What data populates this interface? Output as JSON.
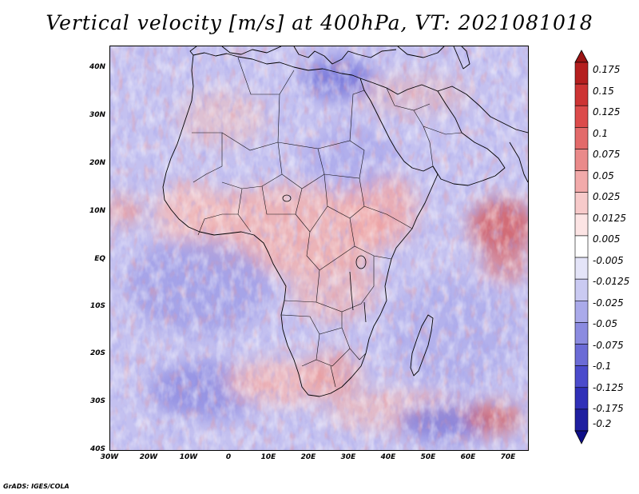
{
  "title": "Vertical velocity [m/s] at 400hPa, VT: 2021081018",
  "credit": "GrADS: IGES/COLA",
  "map": {
    "lat_labels": [
      "40N",
      "30N",
      "20N",
      "10N",
      "EQ",
      "10S",
      "20S",
      "30S",
      "40S"
    ],
    "lon_labels": [
      "30W",
      "20W",
      "10W",
      "0",
      "10E",
      "20E",
      "30E",
      "40E",
      "50E",
      "60E",
      "70E"
    ],
    "lat_range": [
      -40,
      44
    ],
    "lon_range": [
      -30,
      75
    ]
  },
  "colorbar": {
    "labels": [
      "0.175",
      "0.15",
      "0.125",
      "0.1",
      "0.075",
      "0.05",
      "0.025",
      "0.0125",
      "0.005",
      "-0.005",
      "-0.0125",
      "-0.025",
      "-0.05",
      "-0.075",
      "-0.1",
      "-0.125",
      "-0.175",
      "-0.2"
    ],
    "colors": [
      "#9b1414",
      "#b51f1f",
      "#cd3434",
      "#dc4b4b",
      "#e36a6a",
      "#ea8a8a",
      "#f2aaaa",
      "#f7caca",
      "#fce4e4",
      "#ffffff",
      "#e4e4f8",
      "#cacaf2",
      "#aaaaea",
      "#8b8be0",
      "#6b6bd6",
      "#4b4bcc",
      "#3030b8",
      "#1f1fa0",
      "#0f0f88"
    ]
  }
}
